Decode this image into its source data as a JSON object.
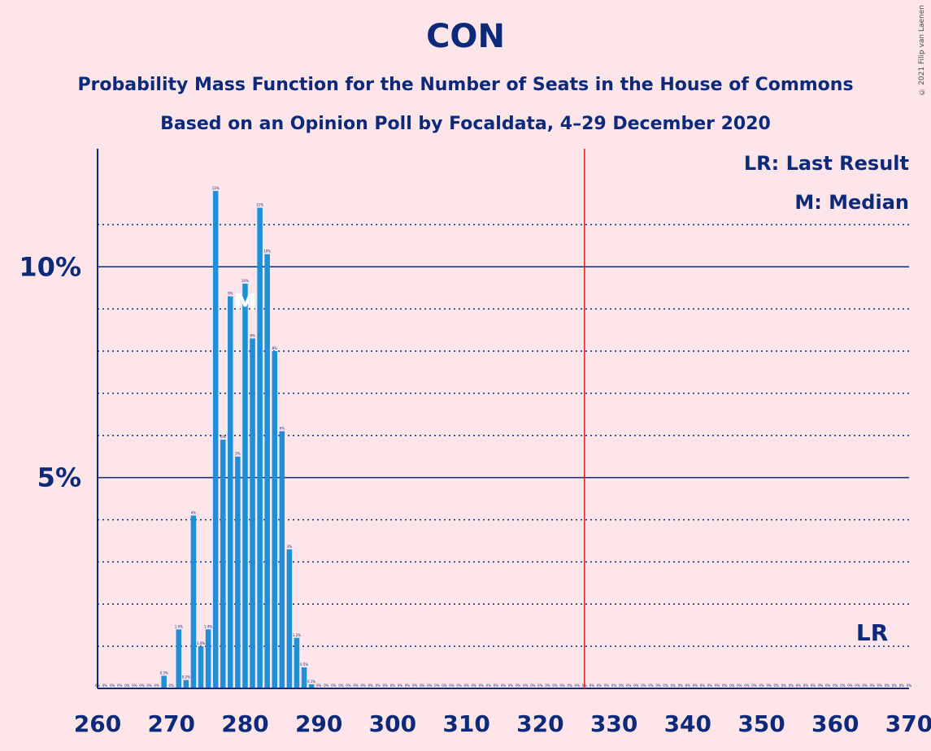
{
  "title": "CON",
  "subtitle1": "Probability Mass Function for the Number of Seats in the House of Commons",
  "subtitle2": "Based on an Opinion Poll by Focaldata, 4–29 December 2020",
  "copyright": "© 2021 Filip van Laenen",
  "colors": {
    "bar": "#1e90d8",
    "text": "#0d2a7a",
    "majority": "#d42020",
    "background": "#fde5ea"
  },
  "chart_data": {
    "type": "bar",
    "x": [
      260,
      261,
      262,
      263,
      264,
      265,
      266,
      267,
      268,
      269,
      270,
      271,
      272,
      273,
      274,
      275,
      276,
      277,
      278,
      279,
      280,
      281,
      282,
      283,
      284,
      285,
      286,
      287,
      288,
      289,
      290,
      291,
      292,
      293,
      294,
      295,
      296,
      297,
      298,
      299,
      300,
      301,
      302,
      303,
      304,
      305,
      306,
      307,
      308,
      309,
      310,
      311,
      312,
      313,
      314,
      315,
      316,
      317,
      318,
      319,
      320,
      321,
      322,
      323,
      324,
      325,
      326,
      327,
      328,
      329,
      330,
      331,
      332,
      333,
      334,
      335,
      336,
      337,
      338,
      339,
      340,
      341,
      342,
      343,
      344,
      345,
      346,
      347,
      348,
      349,
      350,
      351,
      352,
      353,
      354,
      355,
      356,
      357,
      358,
      359,
      360,
      361,
      362,
      363,
      364,
      365,
      366,
      367,
      368,
      369,
      370
    ],
    "values": [
      0,
      0,
      0,
      0,
      0,
      0,
      0,
      0,
      0,
      0.3,
      0,
      1.4,
      0.2,
      4.1,
      1.0,
      1.4,
      11.8,
      5.9,
      9.3,
      5.5,
      9.6,
      8.3,
      11.4,
      10.3,
      8.0,
      6.1,
      3.3,
      1.2,
      0.5,
      0.1,
      0,
      0,
      0,
      0,
      0,
      0,
      0,
      0,
      0,
      0,
      0,
      0,
      0,
      0,
      0,
      0,
      0,
      0,
      0,
      0,
      0,
      0,
      0,
      0,
      0,
      0,
      0,
      0,
      0,
      0,
      0,
      0,
      0,
      0,
      0,
      0,
      0,
      0,
      0,
      0,
      0,
      0,
      0,
      0,
      0,
      0,
      0,
      0,
      0,
      0,
      0,
      0,
      0,
      0,
      0,
      0,
      0,
      0,
      0,
      0,
      0,
      0,
      0,
      0,
      0,
      0,
      0,
      0,
      0,
      0,
      0,
      0,
      0,
      0,
      0,
      0,
      0,
      0,
      0,
      0,
      0
    ],
    "labels": [
      "0%",
      "0%",
      "0%",
      "0%",
      "0%",
      "0%",
      "0%",
      "0%",
      "0%",
      "0.3%",
      "0%",
      "1.4%",
      "0.2%",
      "4%",
      "1.0%",
      "1.4%",
      "12%",
      "6%",
      "9%",
      "5%",
      "10%",
      "8%",
      "11%",
      "10%",
      "8%",
      "6%",
      "3%",
      "1.2%",
      "0.5%",
      "0.1%",
      "0%",
      "0%",
      "0%",
      "0%",
      "0%",
      "0%",
      "0%",
      "0%",
      "0%",
      "0%",
      "0%",
      "0%",
      "0%",
      "0%",
      "0%",
      "0%",
      "0%",
      "0%",
      "0%",
      "0%",
      "0%",
      "0%",
      "0%",
      "0%",
      "0%",
      "0%",
      "0%",
      "0%",
      "0%",
      "0%",
      "0%",
      "0%",
      "0%",
      "0%",
      "0%",
      "0%",
      "0%",
      "0%",
      "0%",
      "0%",
      "0%",
      "0%",
      "0%",
      "0%",
      "0%",
      "0%",
      "0%",
      "0%",
      "0%",
      "0%",
      "0%",
      "0%",
      "0%",
      "0%",
      "0%",
      "0%",
      "0%",
      "0%",
      "0%",
      "0%",
      "0%",
      "0%",
      "0%",
      "0%",
      "0%",
      "0%",
      "0%",
      "0%",
      "0%",
      "0%",
      "0%",
      "0%",
      "0%",
      "0%",
      "0%",
      "0%",
      "0%",
      "0%",
      "0%",
      "0%",
      "0%"
    ],
    "xlim": [
      260,
      370
    ],
    "ylim": [
      0,
      12.8
    ],
    "xticks": [
      260,
      270,
      280,
      290,
      300,
      310,
      320,
      330,
      340,
      350,
      360,
      370
    ],
    "xtick_labels": [
      "260",
      "270",
      "280",
      "290",
      "300",
      "310",
      "320",
      "330",
      "340",
      "350",
      "360",
      "370"
    ],
    "yticks_major": [
      5,
      10
    ],
    "ytick_labels": [
      "5%",
      "10%"
    ],
    "ygrid_minor": [
      1,
      2,
      3,
      4,
      6,
      7,
      8,
      9,
      11
    ],
    "majority_line": 326,
    "median_seat": 280,
    "median_marker": "M",
    "last_result_seat": 365,
    "last_result_marker": "LR",
    "legend": [
      "LR: Last Result",
      "M: Median"
    ],
    "legend_position": "top-right"
  }
}
